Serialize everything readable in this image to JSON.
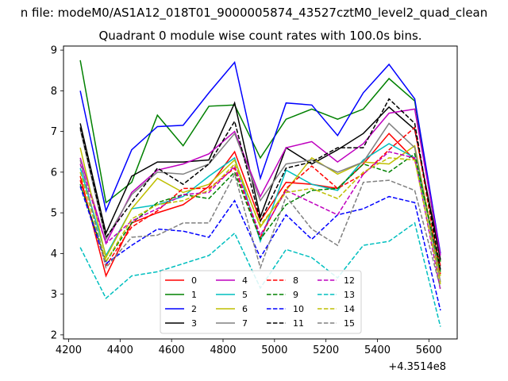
{
  "figure": {
    "suptitle": "n file: modeM0/AS1A12_018T01_9000005874_43527cztM0_level2_quad_clean"
  },
  "chart_data": {
    "type": "line",
    "title": "Quadrant 0 module wise count rates with 100.0s bins.",
    "xlabel": "",
    "ylabel": "",
    "x_offset_label": "+4.3514e8",
    "x": [
      4245,
      4345,
      4445,
      4545,
      4645,
      4745,
      4845,
      4945,
      5045,
      5145,
      5245,
      5345,
      5445,
      5545,
      5645
    ],
    "xlim": [
      4180,
      5710
    ],
    "ylim": [
      1.9,
      9.1
    ],
    "xticks": [
      4200,
      4400,
      4600,
      4800,
      5000,
      5200,
      5400,
      5600
    ],
    "yticks": [
      2,
      3,
      4,
      5,
      6,
      7,
      8,
      9
    ],
    "grid": false,
    "legend_position": "lower-center",
    "series": [
      {
        "name": "0",
        "color": "#ff0000",
        "dash": "solid",
        "values": [
          5.9,
          3.45,
          4.75,
          5.0,
          5.2,
          5.65,
          6.5,
          4.8,
          5.75,
          5.7,
          5.6,
          6.2,
          6.95,
          6.3,
          3.7
        ]
      },
      {
        "name": "1",
        "color": "#008000",
        "dash": "solid",
        "values": [
          8.75,
          5.25,
          5.75,
          7.4,
          6.65,
          7.62,
          7.65,
          6.35,
          7.3,
          7.55,
          7.3,
          7.55,
          8.3,
          7.75,
          3.8
        ]
      },
      {
        "name": "2",
        "color": "#0000ff",
        "dash": "solid",
        "values": [
          8.0,
          5.05,
          6.55,
          7.12,
          7.15,
          7.95,
          8.7,
          5.85,
          7.7,
          7.65,
          6.9,
          7.95,
          8.65,
          7.8,
          4.0
        ]
      },
      {
        "name": "3",
        "color": "#000000",
        "dash": "solid",
        "values": [
          7.2,
          4.5,
          5.9,
          6.25,
          6.25,
          6.3,
          7.7,
          4.9,
          6.6,
          6.2,
          6.55,
          6.95,
          7.6,
          7.05,
          3.85
        ]
      },
      {
        "name": "4",
        "color": "#bf00bf",
        "dash": "solid",
        "values": [
          6.35,
          4.25,
          5.5,
          6.05,
          6.2,
          6.45,
          7.0,
          5.4,
          6.6,
          6.75,
          6.25,
          6.7,
          7.45,
          7.55,
          3.95
        ]
      },
      {
        "name": "5",
        "color": "#00bfbf",
        "dash": "solid",
        "values": [
          6.1,
          3.95,
          5.1,
          5.2,
          5.4,
          5.9,
          6.35,
          4.3,
          6.05,
          5.7,
          5.55,
          6.3,
          6.7,
          6.35,
          3.6
        ]
      },
      {
        "name": "6",
        "color": "#bfbf00",
        "dash": "solid",
        "values": [
          6.6,
          3.9,
          5.1,
          5.85,
          5.5,
          5.7,
          6.3,
          4.65,
          5.55,
          6.35,
          5.95,
          6.25,
          6.2,
          6.65,
          3.45
        ]
      },
      {
        "name": "7",
        "color": "#808080",
        "dash": "solid",
        "values": [
          7.05,
          4.35,
          5.45,
          6.0,
          5.95,
          6.2,
          6.95,
          5.3,
          6.2,
          6.3,
          6.0,
          6.25,
          7.2,
          6.6,
          3.3
        ]
      },
      {
        "name": "8",
        "color": "#ff0000",
        "dash": "dashed",
        "values": [
          5.8,
          3.7,
          4.65,
          5.05,
          5.6,
          5.6,
          6.1,
          4.4,
          5.6,
          6.15,
          5.6,
          5.95,
          6.55,
          7.1,
          3.5
        ]
      },
      {
        "name": "9",
        "color": "#008000",
        "dash": "dashed",
        "values": [
          5.7,
          3.8,
          4.75,
          5.25,
          5.45,
          5.35,
          6.0,
          4.35,
          5.2,
          5.55,
          5.6,
          6.2,
          6.0,
          6.45,
          3.55
        ]
      },
      {
        "name": "10",
        "color": "#0000ff",
        "dash": "dashed",
        "values": [
          5.65,
          3.75,
          4.2,
          4.6,
          4.55,
          4.4,
          5.3,
          3.9,
          4.95,
          4.35,
          4.95,
          5.1,
          5.4,
          5.25,
          2.6
        ]
      },
      {
        "name": "11",
        "color": "#000000",
        "dash": "dashed",
        "values": [
          7.1,
          4.4,
          5.25,
          6.1,
          5.7,
          6.2,
          7.25,
          4.8,
          6.1,
          6.25,
          6.6,
          6.6,
          7.8,
          7.2,
          3.6
        ]
      },
      {
        "name": "12",
        "color": "#bf00bf",
        "dash": "dashed",
        "values": [
          6.2,
          4.25,
          4.8,
          5.1,
          5.45,
          5.5,
          6.15,
          4.45,
          5.55,
          5.25,
          4.95,
          5.95,
          6.5,
          6.35,
          3.1
        ]
      },
      {
        "name": "13",
        "color": "#00bfbf",
        "dash": "dashed",
        "values": [
          4.15,
          2.9,
          3.45,
          3.55,
          3.75,
          3.95,
          4.5,
          3.15,
          4.1,
          3.9,
          3.4,
          4.2,
          4.3,
          4.75,
          2.2
        ]
      },
      {
        "name": "14",
        "color": "#bfbf00",
        "dash": "dashed",
        "values": [
          6.0,
          3.8,
          4.85,
          5.2,
          5.3,
          5.55,
          6.2,
          4.7,
          5.5,
          5.6,
          5.35,
          6.0,
          6.35,
          6.3,
          3.25
        ]
      },
      {
        "name": "15",
        "color": "#808080",
        "dash": "dashed",
        "values": [
          6.3,
          3.65,
          4.4,
          4.45,
          4.75,
          4.75,
          5.95,
          3.65,
          5.4,
          4.6,
          4.2,
          5.75,
          5.8,
          5.55,
          3.15
        ]
      }
    ]
  }
}
